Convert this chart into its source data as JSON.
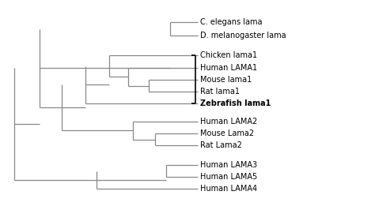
{
  "taxa_order": [
    "C. elegans lama",
    "D. melanogaster lama",
    "Chicken lama1",
    "Human LAMA1",
    "Mouse lama1",
    "Rat lama1",
    "Zebrafish lama1",
    "Human LAMA2",
    "Mouse Lama2",
    "Rat Lama2",
    "Human LAMA3",
    "Human LAMA5",
    "Human LAMA4"
  ],
  "bold_taxa": [
    "Zebrafish lama1"
  ],
  "line_color": "#888888",
  "bold_color": "#000000",
  "background": "#ffffff",
  "fontsize": 7.0,
  "lw": 0.9
}
